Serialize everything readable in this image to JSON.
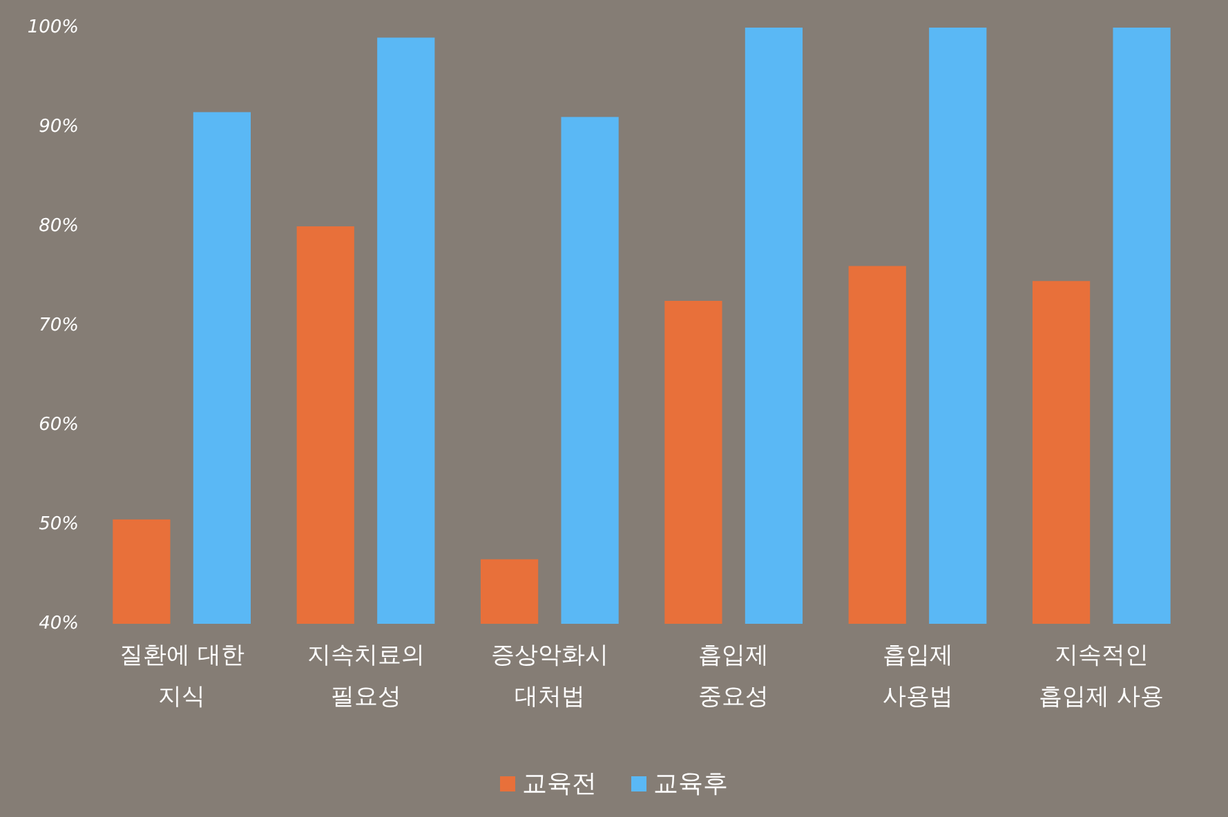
{
  "chart_data": {
    "type": "bar",
    "categories": [
      "질환에 대한\n지식",
      "지속치료의\n필요성",
      "증상악화시\n대처법",
      "흡입제\n중요성",
      "흡입제\n사용법",
      "지속적인\n흡입제 사용"
    ],
    "series": [
      {
        "name": "교육전",
        "color": "#e8703a",
        "values": [
          50.5,
          80,
          46.5,
          72.5,
          76,
          74.5
        ]
      },
      {
        "name": "교육후",
        "color": "#5ab8f5",
        "values": [
          91.5,
          99,
          91,
          100,
          100,
          100
        ]
      }
    ],
    "ylim": [
      40,
      100
    ],
    "yticks": [
      {
        "value": 40,
        "label": "40%"
      },
      {
        "value": 50,
        "label": "50%"
      },
      {
        "value": 60,
        "label": "60%"
      },
      {
        "value": 70,
        "label": "70%"
      },
      {
        "value": 80,
        "label": "80%"
      },
      {
        "value": 90,
        "label": "90%"
      },
      {
        "value": 100,
        "label": "100%"
      }
    ],
    "grid": false,
    "legend": "bottom"
  }
}
